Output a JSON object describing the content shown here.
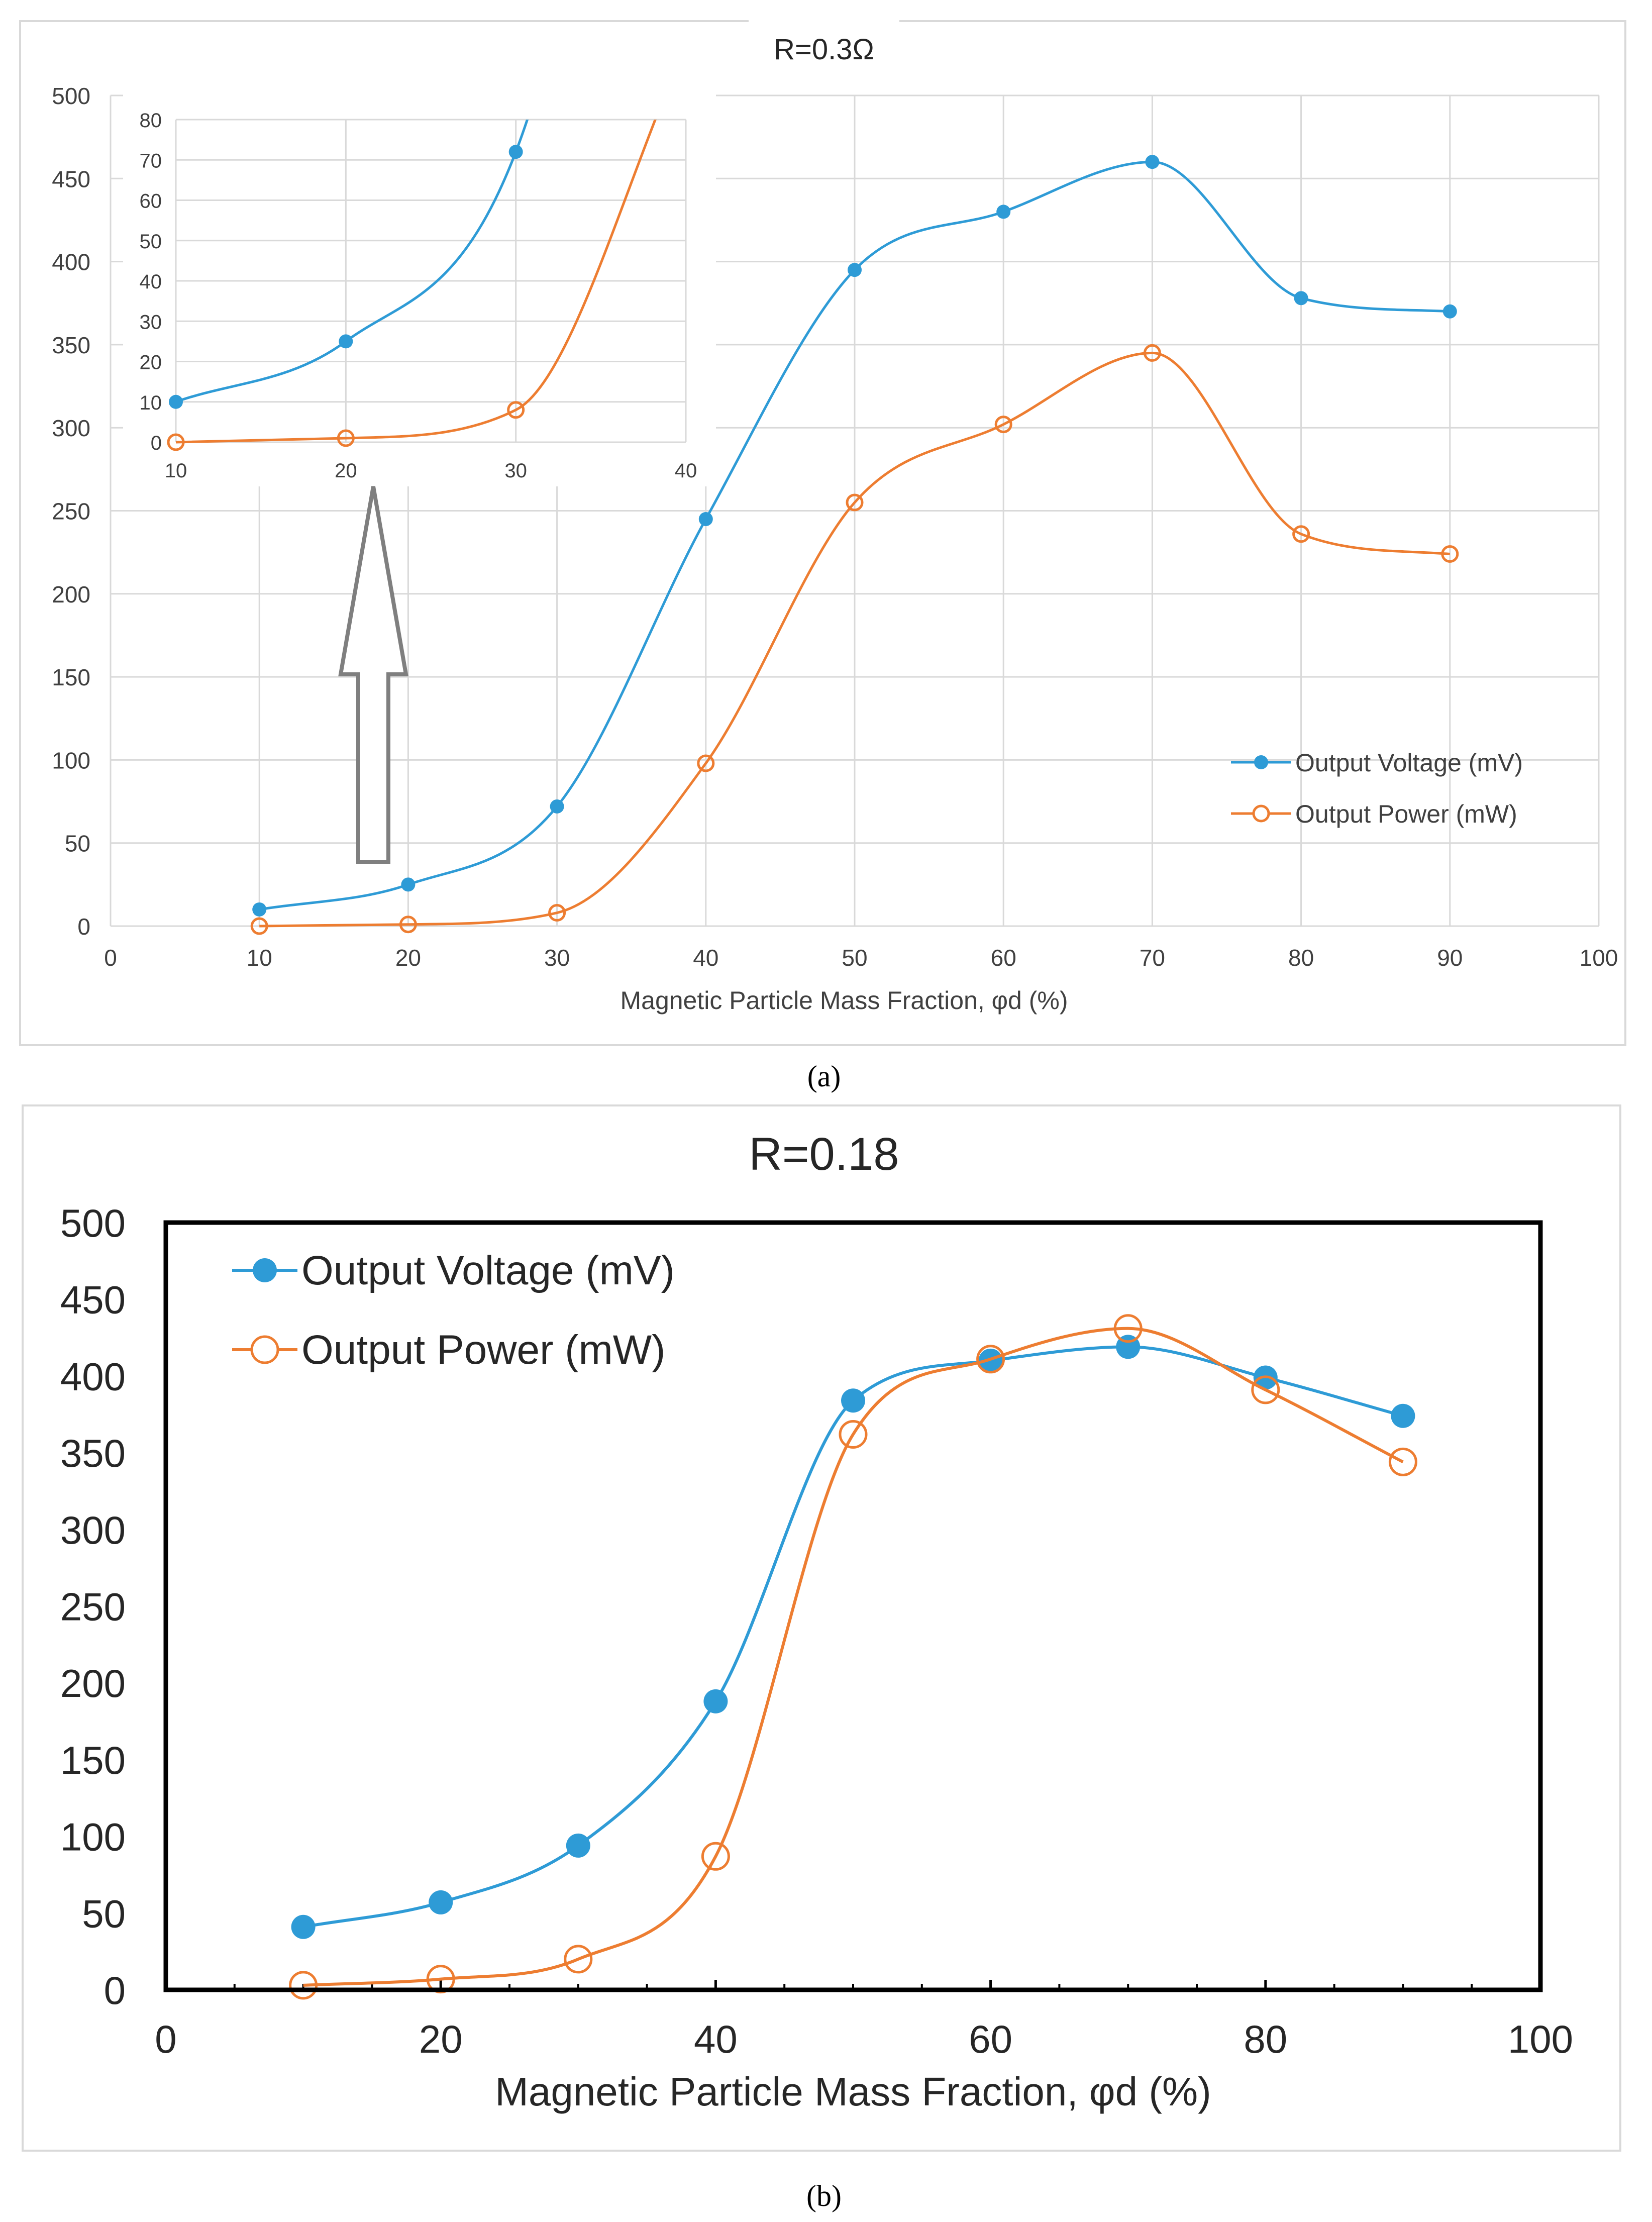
{
  "figure": {
    "caption_a": "(a)",
    "caption_b": "(b)"
  },
  "colors": {
    "voltage": "#2E9BD6",
    "power": "#ED7D31",
    "grid_a": "#D9D9D9",
    "axis_text": "#404040",
    "arrow": "#7F7F7F"
  },
  "chart_data": [
    {
      "id": "main-a",
      "type": "line",
      "title": "R=0.3Ω",
      "xlabel": "Magnetic Particle Mass Fraction, φd (%)",
      "ylabel": "",
      "xlim": [
        0,
        100
      ],
      "ylim": [
        0,
        500
      ],
      "xticks": [
        0,
        10,
        20,
        30,
        40,
        50,
        60,
        70,
        80,
        90,
        100
      ],
      "yticks": [
        0,
        50,
        100,
        150,
        200,
        250,
        300,
        350,
        400,
        450,
        500
      ],
      "grid": true,
      "legend": "bottom-right",
      "series": [
        {
          "name": "Output Voltage (mV)",
          "x": [
            10,
            20,
            30,
            40,
            50,
            60,
            70,
            80,
            90
          ],
          "values": [
            10,
            25,
            72,
            245,
            395,
            430,
            460,
            378,
            370
          ]
        },
        {
          "name": "Output Power (mW)",
          "x": [
            10,
            20,
            30,
            40,
            50,
            60,
            70,
            80,
            90
          ],
          "values": [
            0,
            1,
            8,
            98,
            255,
            302,
            345,
            236,
            224
          ]
        }
      ]
    },
    {
      "id": "inset-a",
      "type": "line",
      "title": "",
      "xlim": [
        10,
        40
      ],
      "ylim": [
        0,
        80
      ],
      "xticks": [
        10,
        20,
        30,
        40
      ],
      "yticks": [
        0,
        10,
        20,
        30,
        40,
        50,
        60,
        70,
        80
      ],
      "grid": true,
      "series": [
        {
          "name": "Output Voltage (mV)",
          "x": [
            10,
            20,
            30
          ],
          "values": [
            10,
            25,
            72
          ]
        },
        {
          "name": "Output Power (mW)",
          "x": [
            10,
            20,
            30
          ],
          "values": [
            0,
            1,
            8
          ]
        }
      ]
    },
    {
      "id": "main-b",
      "type": "line",
      "title": "R=0.18",
      "xlabel": "Magnetic Particle Mass Fraction, φd (%)",
      "ylabel": "",
      "xlim": [
        0,
        100
      ],
      "ylim": [
        0,
        500
      ],
      "xticks": [
        0,
        20,
        40,
        60,
        80,
        100
      ],
      "yticks": [
        0,
        50,
        100,
        150,
        200,
        250,
        300,
        350,
        400,
        450,
        500
      ],
      "grid": false,
      "legend": "top-left",
      "series": [
        {
          "name": "Output Voltage (mV)",
          "x": [
            10,
            20,
            30,
            40,
            50,
            60,
            70,
            80,
            90
          ],
          "values": [
            41,
            57,
            94,
            188,
            384,
            410,
            419,
            399,
            374
          ]
        },
        {
          "name": "Output Power (mW)",
          "x": [
            10,
            20,
            30,
            40,
            50,
            60,
            70,
            80,
            90
          ],
          "values": [
            3,
            7,
            20,
            87,
            362,
            411,
            431,
            391,
            344
          ]
        }
      ]
    }
  ]
}
